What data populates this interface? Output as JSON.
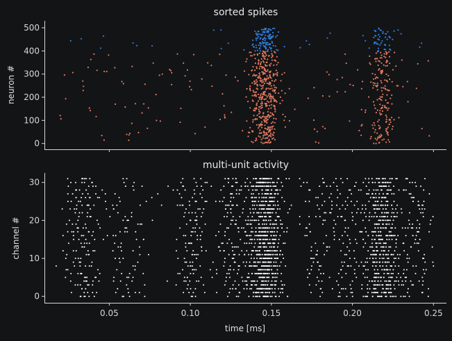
{
  "chart_data": [
    {
      "type": "scatter",
      "title": "sorted spikes",
      "xlabel": "",
      "ylabel": "neuron #",
      "xlim": [
        0.01,
        0.258
      ],
      "ylim": [
        -25,
        530
      ],
      "xticks": [
        0.05,
        0.1,
        0.15,
        0.2,
        0.25
      ],
      "xtick_labels_shown": false,
      "yticks": [
        0,
        100,
        200,
        300,
        400,
        500
      ],
      "ytick_labels": [
        "0",
        "100",
        "200",
        "300",
        "400",
        "500"
      ],
      "grid": false,
      "legend": "none",
      "series": [
        {
          "color": "#e07a5f",
          "neuron_range": [
            0,
            399
          ],
          "bursts": [
            {
              "center": 0.146,
              "spread": 0.0045,
              "count": 430
            },
            {
              "center": 0.218,
              "spread": 0.0035,
              "count": 170
            }
          ],
          "background_count": 150,
          "background_x_range": [
            0.018,
            0.248
          ]
        },
        {
          "color": "#2f7ee0",
          "neuron_range": [
            400,
            499
          ],
          "bursts": [
            {
              "center": 0.146,
              "spread": 0.004,
              "count": 110
            },
            {
              "center": 0.218,
              "spread": 0.0035,
              "count": 45
            }
          ],
          "background_count": 28,
          "background_x_range": [
            0.025,
            0.245
          ]
        }
      ]
    },
    {
      "type": "scatter",
      "title": "multi-unit activity",
      "xlabel": "time [ms]",
      "ylabel": "channel #",
      "xlim": [
        0.01,
        0.258
      ],
      "ylim": [
        -1.7,
        32.5
      ],
      "xticks": [
        0.05,
        0.1,
        0.15,
        0.2,
        0.25
      ],
      "xtick_labels": [
        "0.05",
        "0.10",
        "0.15",
        "0.20",
        "0.25"
      ],
      "yticks": [
        0,
        10,
        20,
        30
      ],
      "ytick_labels": [
        "0",
        "10",
        "20",
        "30"
      ],
      "grid": false,
      "legend": "none",
      "series": [
        {
          "color": "#ffffff",
          "channels": [
            0,
            31
          ],
          "dense_bursts": [
            {
              "center": 0.1465,
              "spread": 0.0055,
              "count_per_channel": 26
            },
            {
              "center": 0.218,
              "spread": 0.0055,
              "count_per_channel": 17
            }
          ],
          "sparse_clusters": [
            {
              "center": 0.033,
              "spread": 0.006,
              "count_per_channel": 5
            },
            {
              "center": 0.061,
              "spread": 0.008,
              "count_per_channel": 3
            },
            {
              "center": 0.1,
              "spread": 0.006,
              "count_per_channel": 4
            },
            {
              "center": 0.126,
              "spread": 0.006,
              "count_per_channel": 5
            },
            {
              "center": 0.178,
              "spread": 0.006,
              "count_per_channel": 3
            },
            {
              "center": 0.196,
              "spread": 0.005,
              "count_per_channel": 3
            },
            {
              "center": 0.24,
              "spread": 0.006,
              "count_per_channel": 3
            }
          ]
        }
      ]
    }
  ]
}
